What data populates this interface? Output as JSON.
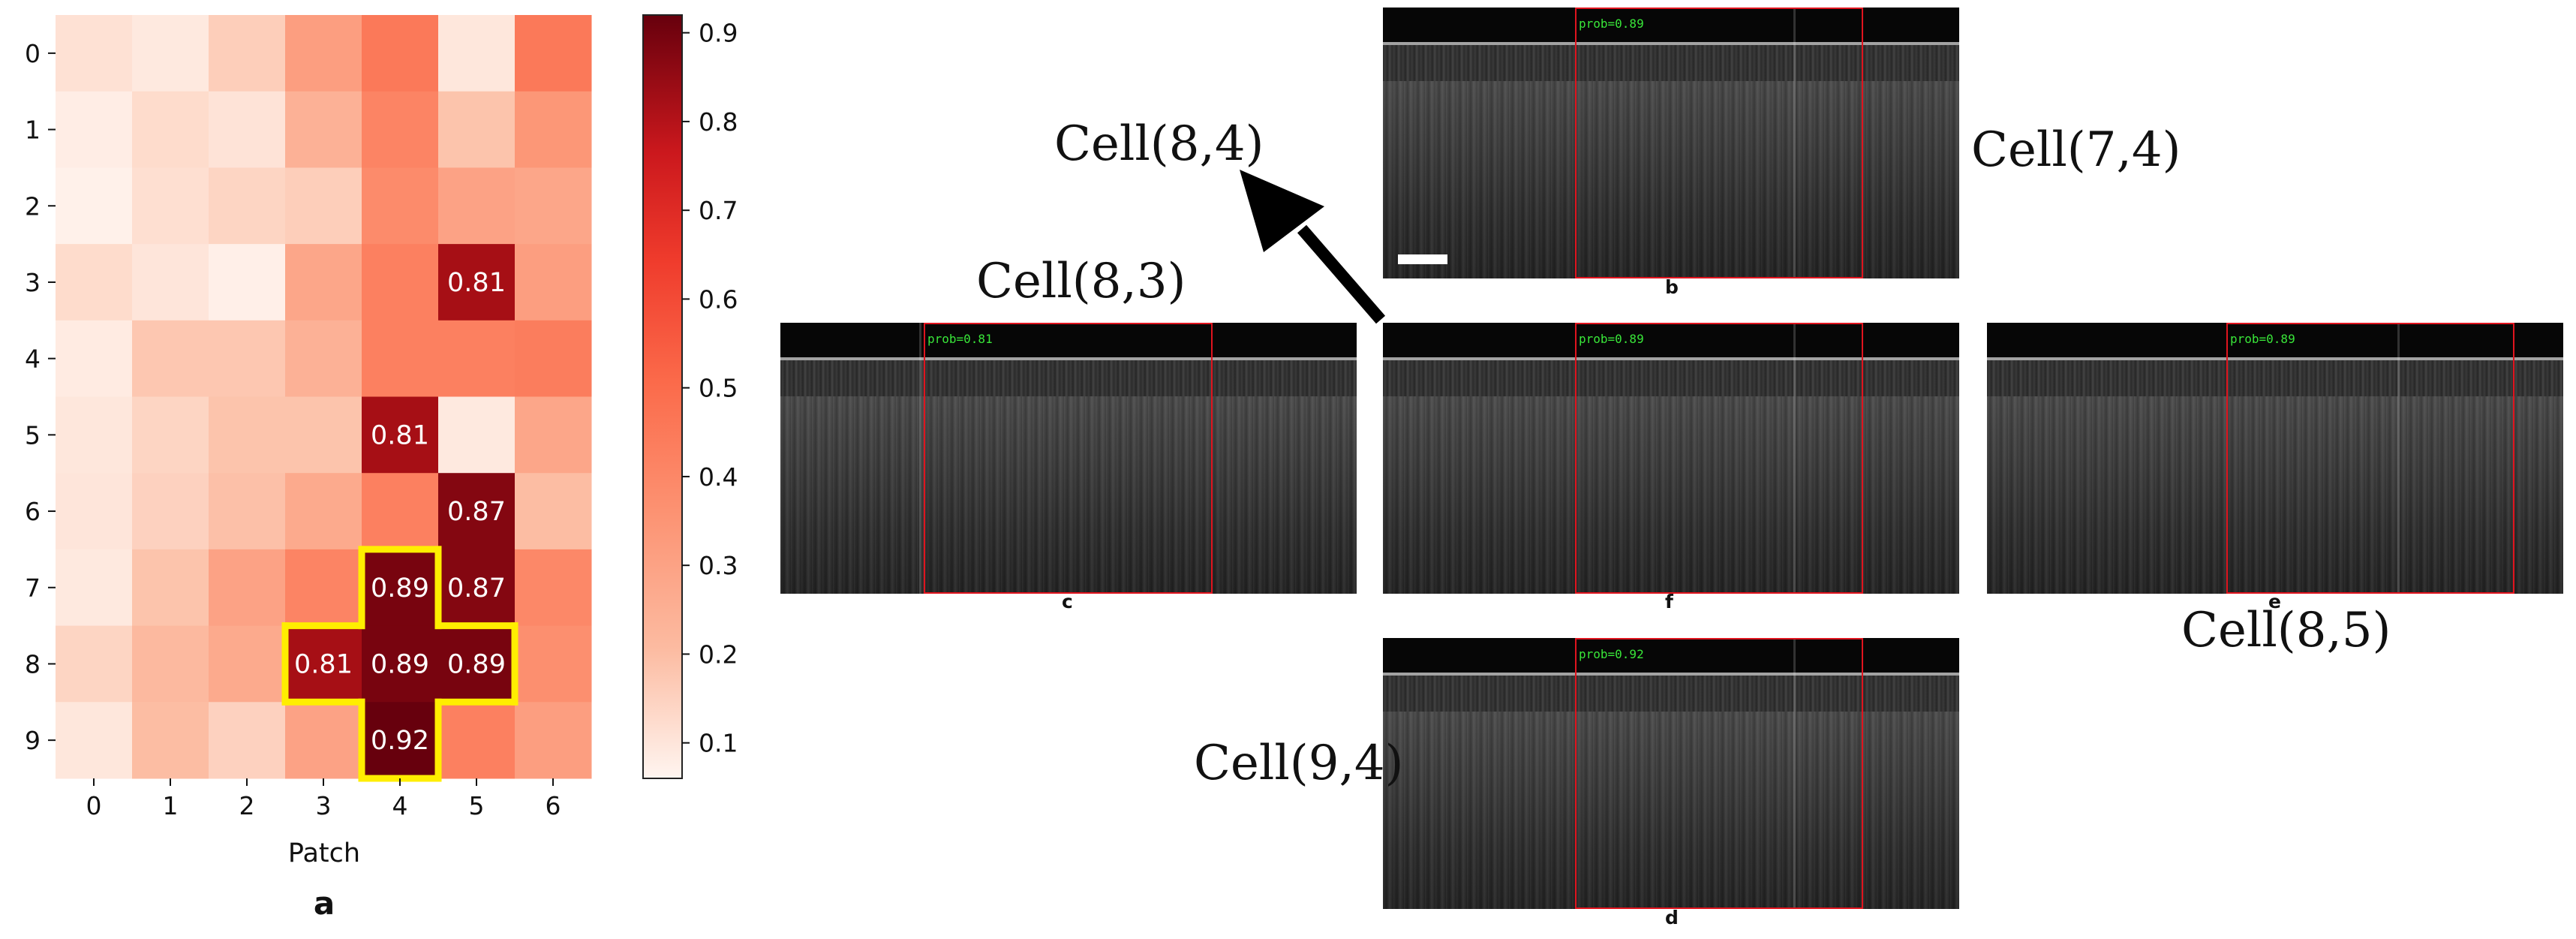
{
  "chart_data": {
    "type": "heatmap",
    "xlabel": "Patch",
    "ylabel": "",
    "panel_label": "a",
    "x_categories": [
      "0",
      "1",
      "2",
      "3",
      "4",
      "5",
      "6"
    ],
    "y_categories": [
      "0",
      "1",
      "2",
      "3",
      "4",
      "5",
      "6",
      "7",
      "8",
      "9"
    ],
    "values": [
      [
        0.16,
        0.12,
        0.22,
        0.35,
        0.45,
        0.13,
        0.45
      ],
      [
        0.1,
        0.18,
        0.15,
        0.3,
        0.42,
        0.25,
        0.37
      ],
      [
        0.08,
        0.17,
        0.2,
        0.22,
        0.4,
        0.34,
        0.33
      ],
      [
        0.18,
        0.14,
        0.09,
        0.33,
        0.43,
        0.81,
        0.35
      ],
      [
        0.11,
        0.24,
        0.24,
        0.3,
        0.43,
        0.43,
        0.44
      ],
      [
        0.13,
        0.2,
        0.25,
        0.25,
        0.81,
        0.12,
        0.33
      ],
      [
        0.14,
        0.21,
        0.26,
        0.32,
        0.43,
        0.87,
        0.27
      ],
      [
        0.12,
        0.25,
        0.34,
        0.42,
        0.89,
        0.87,
        0.41
      ],
      [
        0.2,
        0.28,
        0.32,
        0.81,
        0.89,
        0.89,
        0.39
      ],
      [
        0.13,
        0.27,
        0.21,
        0.34,
        0.92,
        0.43,
        0.35
      ]
    ],
    "annotated_cells": [
      {
        "row": 3,
        "col": 5,
        "label": "0.81"
      },
      {
        "row": 5,
        "col": 4,
        "label": "0.81"
      },
      {
        "row": 6,
        "col": 5,
        "label": "0.87"
      },
      {
        "row": 7,
        "col": 4,
        "label": "0.89"
      },
      {
        "row": 7,
        "col": 5,
        "label": "0.87"
      },
      {
        "row": 8,
        "col": 3,
        "label": "0.81"
      },
      {
        "row": 8,
        "col": 4,
        "label": "0.89"
      },
      {
        "row": 8,
        "col": 5,
        "label": "0.89"
      },
      {
        "row": 9,
        "col": 4,
        "label": "0.92"
      }
    ],
    "highlighted_cells": [
      [
        7,
        4
      ],
      [
        8,
        3
      ],
      [
        8,
        4
      ],
      [
        8,
        5
      ],
      [
        9,
        4
      ]
    ],
    "highlight_color": "#ffee00",
    "colormap": "Reds",
    "colorbar": {
      "range": [
        0.06,
        0.92
      ],
      "ticks": [
        0.1,
        0.2,
        0.3,
        0.4,
        0.5,
        0.6,
        0.7,
        0.8,
        0.9
      ],
      "tick_labels": [
        "0.1",
        "0.2",
        "0.3",
        "0.4",
        "0.5",
        "0.6",
        "0.7",
        "0.8",
        "0.9"
      ],
      "placement": "right"
    }
  },
  "panels": {
    "b": {
      "letter": "b",
      "prob": "prob=0.89",
      "cell_label": "Cell(7,4)"
    },
    "c": {
      "letter": "c",
      "prob": "prob=0.81",
      "cell_label": "Cell(8,3)"
    },
    "f": {
      "letter": "f",
      "prob": "prob=0.89",
      "cell_label": "Cell(8,4)"
    },
    "e": {
      "letter": "e",
      "prob": "prob=0.89",
      "cell_label": "Cell(8,5)"
    },
    "d": {
      "letter": "d",
      "prob": "prob=0.92",
      "cell_label": "Cell(9,4)"
    }
  },
  "colors": {
    "prob_text": "#39e639",
    "box": "#e0141e",
    "arrow": "#000000"
  }
}
